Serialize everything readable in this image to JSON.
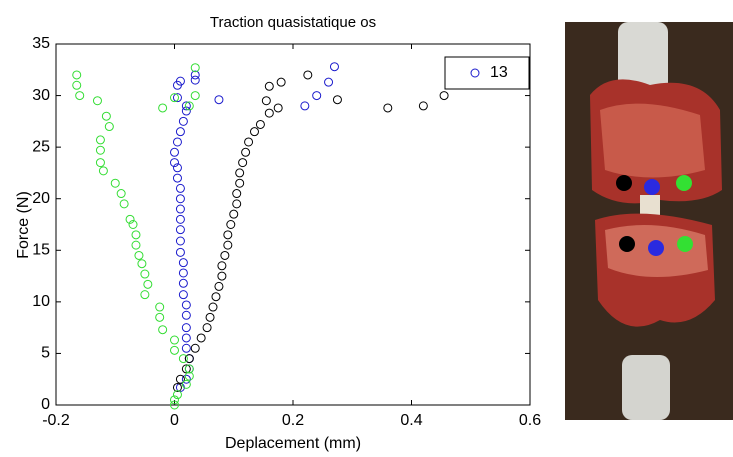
{
  "chart_data": {
    "type": "scatter",
    "title": "Traction quasistatique os",
    "x_label": "Deplacement (mm)",
    "y_label": "Force (N)",
    "xlim": [
      -0.2,
      0.6
    ],
    "xticks": [
      -0.2,
      0,
      0.2,
      0.4,
      0.6
    ],
    "ylim": [
      0,
      35
    ],
    "yticks": [
      0,
      5,
      10,
      15,
      20,
      25,
      30,
      35
    ],
    "grid": false,
    "legend": "upper right",
    "series": [
      {
        "name": "13",
        "color": "#1a1acc",
        "x": [
          0.01,
          0.02,
          0.025,
          0.025,
          0.02,
          0.02,
          0.02,
          0.02,
          0.02,
          0.015,
          0.015,
          0.015,
          0.015,
          0.01,
          0.01,
          0.01,
          0.01,
          0.01,
          0.01,
          0.01,
          0.005,
          0.005,
          0.0,
          0.0,
          0.005,
          0.01,
          0.015,
          0.02,
          0.02,
          0.005,
          0.005,
          0.01,
          0.035,
          0.035,
          0.075,
          0.22,
          0.24,
          0.26,
          0.27
        ],
        "values": [
          1.7,
          2.5,
          3.5,
          4.5,
          5.5,
          6.5,
          7.5,
          8.7,
          9.7,
          10.7,
          11.8,
          12.8,
          13.8,
          14.8,
          15.9,
          17,
          18,
          19,
          20,
          21,
          22,
          23,
          23.5,
          24.5,
          25.5,
          26.5,
          27.5,
          28.5,
          29,
          29.8,
          31,
          31.4,
          32,
          31.5,
          29.6,
          29,
          30,
          31.3,
          32.8
        ]
      },
      {
        "color": "#000000",
        "x": [
          0.005,
          0.01,
          0.02,
          0.025,
          0.035,
          0.045,
          0.055,
          0.06,
          0.065,
          0.07,
          0.075,
          0.08,
          0.08,
          0.085,
          0.09,
          0.09,
          0.095,
          0.1,
          0.105,
          0.105,
          0.11,
          0.11,
          0.115,
          0.12,
          0.125,
          0.135,
          0.145,
          0.16,
          0.155,
          0.175,
          0.16,
          0.18,
          0.225,
          0.275,
          0.36,
          0.42,
          0.455,
          0.48
        ],
        "values": [
          1.7,
          2.5,
          3.5,
          4.5,
          5.5,
          6.5,
          7.5,
          8.5,
          9.5,
          10.5,
          11.5,
          12.5,
          13.5,
          14.5,
          15.5,
          16.5,
          17.5,
          18.5,
          19.5,
          20.5,
          21.5,
          22.5,
          23.5,
          24.5,
          25.5,
          26.5,
          27.2,
          28.3,
          29.5,
          28.8,
          30.9,
          31.3,
          32,
          29.6,
          28.8,
          29,
          30,
          31.5
        ]
      },
      {
        "color": "#33dd33",
        "x": [
          0.0,
          0.0,
          0.005,
          0.02,
          0.025,
          0.025,
          0.015,
          0.0,
          0.0,
          -0.02,
          -0.025,
          -0.025,
          -0.05,
          -0.045,
          -0.05,
          -0.055,
          -0.06,
          -0.065,
          -0.065,
          -0.07,
          -0.075,
          -0.085,
          -0.09,
          -0.1,
          -0.12,
          -0.125,
          -0.125,
          -0.125,
          -0.11,
          -0.115,
          -0.13,
          -0.16,
          -0.165,
          -0.165,
          -0.02,
          0.0,
          0.035,
          0.035,
          0.025
        ],
        "values": [
          0,
          0.5,
          1,
          2,
          2.8,
          3.5,
          4.5,
          5.3,
          6.3,
          7.3,
          8.5,
          9.5,
          10.7,
          11.7,
          12.7,
          13.7,
          14.5,
          15.5,
          16.5,
          17.5,
          18,
          19.5,
          20.5,
          21.5,
          22.7,
          23.5,
          24.7,
          25.7,
          27,
          28,
          29.5,
          30,
          31,
          32,
          28.8,
          29.8,
          30,
          32.7,
          29
        ]
      }
    ]
  }
}
